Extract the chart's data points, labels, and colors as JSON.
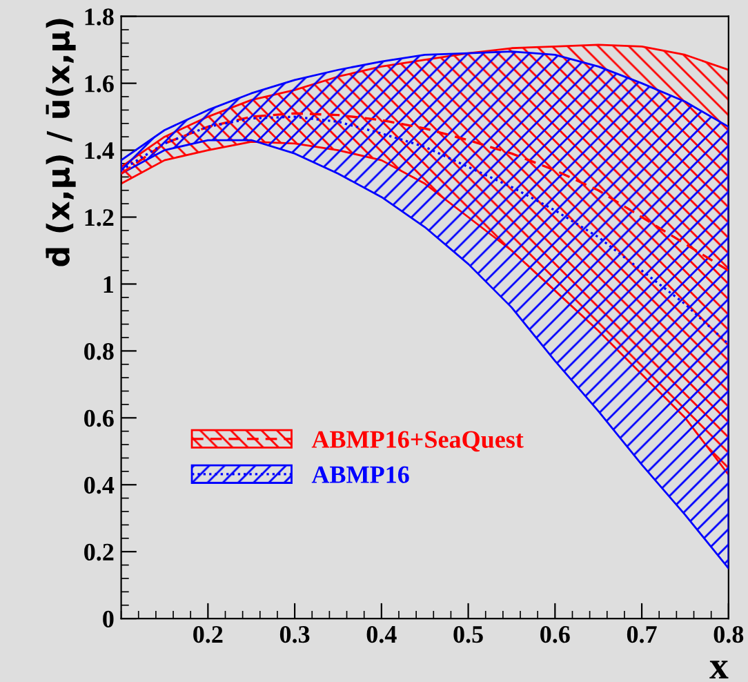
{
  "chart_data": {
    "type": "line",
    "xlabel": "x",
    "ylabel": "d̄ (x,μ) / ū(x,μ)",
    "x": [
      0.1,
      0.15,
      0.2,
      0.25,
      0.3,
      0.35,
      0.4,
      0.45,
      0.5,
      0.55,
      0.6,
      0.65,
      0.7,
      0.75,
      0.8
    ],
    "series": [
      {
        "name": "ABMP16+SeaQuest",
        "color": "#ff0000",
        "line_style": "dashed",
        "values": [
          1.33,
          1.42,
          1.47,
          1.5,
          1.51,
          1.505,
          1.49,
          1.465,
          1.43,
          1.39,
          1.34,
          1.28,
          1.2,
          1.12,
          1.04
        ],
        "lower": [
          1.3,
          1.37,
          1.4,
          1.425,
          1.42,
          1.4,
          1.37,
          1.3,
          1.2,
          1.1,
          0.98,
          0.86,
          0.73,
          0.6,
          0.43
        ],
        "upper": [
          1.35,
          1.44,
          1.5,
          1.55,
          1.58,
          1.62,
          1.65,
          1.67,
          1.69,
          1.705,
          1.71,
          1.715,
          1.71,
          1.685,
          1.64
        ]
      },
      {
        "name": "ABMP16",
        "color": "#0000ff",
        "line_style": "dotted",
        "values": [
          1.34,
          1.42,
          1.47,
          1.495,
          1.5,
          1.485,
          1.45,
          1.41,
          1.35,
          1.29,
          1.22,
          1.14,
          1.04,
          0.94,
          0.82
        ],
        "lower": [
          1.33,
          1.4,
          1.43,
          1.43,
          1.39,
          1.33,
          1.26,
          1.17,
          1.06,
          0.93,
          0.77,
          0.62,
          0.46,
          0.31,
          0.15
        ],
        "upper": [
          1.37,
          1.46,
          1.52,
          1.57,
          1.61,
          1.64,
          1.665,
          1.685,
          1.69,
          1.695,
          1.685,
          1.65,
          1.6,
          1.545,
          1.47
        ]
      }
    ],
    "xlim": [
      0.1,
      0.8
    ],
    "xticks": [
      0.2,
      0.3,
      0.4,
      0.5,
      0.6,
      0.7,
      0.8
    ],
    "ylim": [
      0,
      1.8
    ],
    "yticks": [
      0,
      0.2,
      0.4,
      0.6,
      0.8,
      1,
      1.2,
      1.4,
      1.6,
      1.8
    ],
    "grid": false,
    "legend": "left"
  }
}
